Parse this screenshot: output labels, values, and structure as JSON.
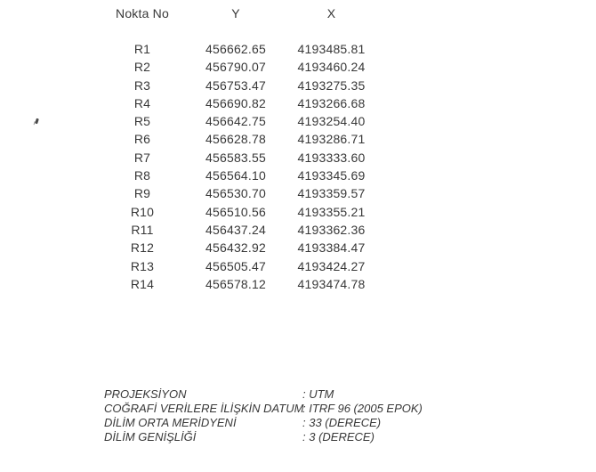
{
  "table": {
    "headers": [
      "Nokta No",
      "Y",
      "X"
    ],
    "rows": [
      {
        "no": "R1",
        "y": "456662.65",
        "x": "4193485.81"
      },
      {
        "no": "R2",
        "y": "456790.07",
        "x": "4193460.24"
      },
      {
        "no": "R3",
        "y": "456753.47",
        "x": "4193275.35"
      },
      {
        "no": "R4",
        "y": "456690.82",
        "x": "4193266.68"
      },
      {
        "no": "R5",
        "y": "456642.75",
        "x": "4193254.40"
      },
      {
        "no": "R6",
        "y": "456628.78",
        "x": "4193286.71"
      },
      {
        "no": "R7",
        "y": "456583.55",
        "x": "4193333.60"
      },
      {
        "no": "R8",
        "y": "456564.10",
        "x": "4193345.69"
      },
      {
        "no": "R9",
        "y": "456530.70",
        "x": "4193359.57"
      },
      {
        "no": "R10",
        "y": "456510.56",
        "x": "4193355.21"
      },
      {
        "no": "R11",
        "y": "456437.24",
        "x": "4193362.36"
      },
      {
        "no": "R12",
        "y": "456432.92",
        "x": "4193384.47"
      },
      {
        "no": "R13",
        "y": "456505.47",
        "x": "4193424.27"
      },
      {
        "no": "R14",
        "y": "456578.12",
        "x": "4193474.78"
      }
    ]
  },
  "metadata": {
    "items": [
      {
        "label": "PROJEKSİYON",
        "value": ": UTM"
      },
      {
        "label": "COĞRAFİ VERİLERE İLİŞKİN DATUM",
        "value": ": ITRF 96 (2005 EPOK)"
      },
      {
        "label": "DİLİM ORTA MERİDYENİ",
        "value": ": 33 (DERECE)"
      },
      {
        "label": "DİLİM GENİŞLİĞİ",
        "value": ": 3 (DERECE)"
      }
    ]
  },
  "colors": {
    "background": "#ffffff",
    "text": "#383838"
  }
}
